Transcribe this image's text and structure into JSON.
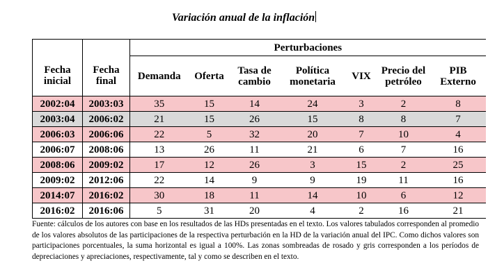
{
  "title": "Variación anual de la inflación",
  "table": {
    "group_header": "Perturbaciones",
    "columns": [
      "Fecha inicial",
      "Fecha final",
      "Demanda",
      "Oferta",
      "Tasa de cambio",
      "Política monetaria",
      "VIX",
      "Precio del petróleo",
      "PIB Externo"
    ],
    "rows": [
      [
        "2002:04",
        "2003:03",
        35,
        15,
        14,
        24,
        3,
        2,
        8
      ],
      [
        "2003:04",
        "2006:02",
        21,
        15,
        26,
        15,
        8,
        8,
        7
      ],
      [
        "2006:03",
        "2006:06",
        22,
        5,
        32,
        20,
        7,
        10,
        4
      ],
      [
        "2006:07",
        "2008:06",
        13,
        26,
        11,
        21,
        6,
        7,
        16
      ],
      [
        "2008:06",
        "2009:02",
        17,
        12,
        26,
        3,
        15,
        2,
        25
      ],
      [
        "2009:02",
        "2012:06",
        22,
        14,
        9,
        9,
        19,
        11,
        16
      ],
      [
        "2014:07",
        "2016:02",
        30,
        18,
        11,
        14,
        10,
        6,
        12
      ],
      [
        "2016:02",
        "2016:06",
        5,
        31,
        20,
        4,
        2,
        16,
        21
      ]
    ]
  },
  "footnote": "Fuente: cálculos de los autores con base en los resultados de las HDs presentadas en el texto. Los valores tabulados corresponden al promedio de los valores absolutos de las participaciones de la respectiva perturbación en la HD de la variación anual del IPC. Como dichos valores son participaciones porcentuales, la suma horizontal es igual a 100%. Las zonas sombreadas de rosado y gris corresponden a los períodos de depreciaciones y apreciaciones, respectivamente, tal y como se describen en el texto."
}
